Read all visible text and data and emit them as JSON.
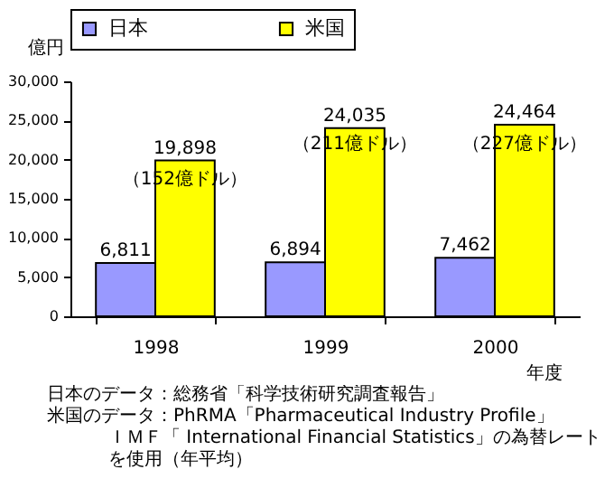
{
  "chart_data": {
    "type": "bar",
    "categories": [
      "1998",
      "1999",
      "2000"
    ],
    "series": [
      {
        "name": "日本",
        "color": "#9999ff",
        "values": [
          6811,
          6894,
          7462
        ],
        "value_labels": [
          "6,811",
          "6,894",
          "7,462"
        ]
      },
      {
        "name": "米国",
        "color": "#ffff00",
        "values": [
          19898,
          24035,
          24464
        ],
        "value_labels": [
          "19,898",
          "24,035",
          "24,464"
        ]
      }
    ],
    "ylabel": "億円",
    "xlabel": "年度",
    "ylim": [
      0,
      30000
    ],
    "yticks": [
      0,
      {
        "value": 5000,
        "label": "5,000"
      },
      {
        "value": 10000,
        "label": "10,000"
      },
      {
        "value": 15000,
        "label": "15,000"
      },
      {
        "value": 20000,
        "label": "20,000"
      },
      {
        "value": 25000,
        "label": "25,000"
      },
      {
        "value": 30000,
        "label": "30,000"
      }
    ],
    "grid": false,
    "legend": "top",
    "annotations": [
      {
        "text": "（152億ドル）",
        "x": "1998",
        "y": 17500
      },
      {
        "text": "（211億ドル）",
        "x": "1999",
        "y": 22000
      },
      {
        "text": "（227億ドル）",
        "x": "2000",
        "y": 22000
      },
      "日本のデータ：総務省「科学技術研究調査報告」",
      "米国のデータ：PhRMA「Pharmaceutical Industry Profile」",
      "ＩＭＦ「 International Financial Statistics」の為替レートを使用（年平均）"
    ]
  }
}
